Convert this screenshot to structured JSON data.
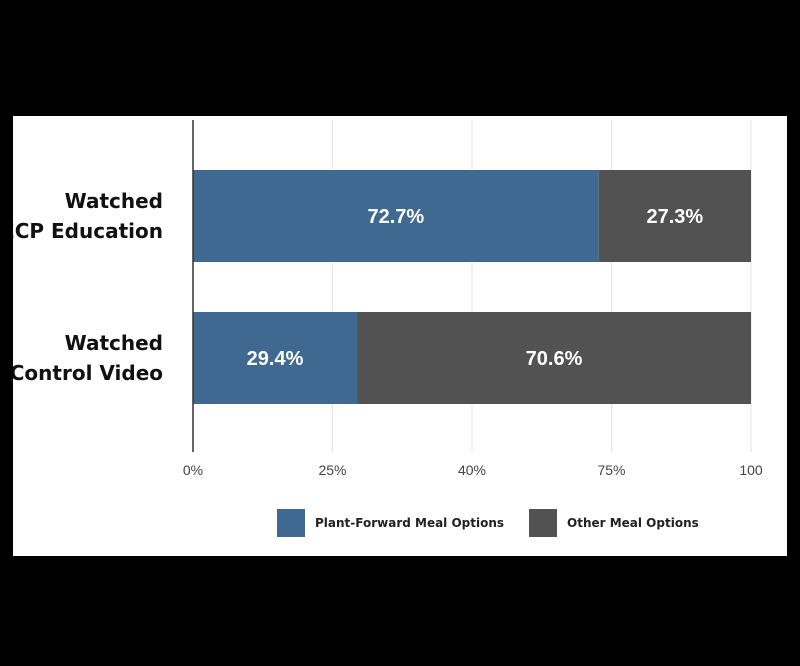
{
  "chart_data": {
    "type": "bar",
    "orientation": "horizontal",
    "stacked": true,
    "categories": [
      [
        "Watched",
        "ECP Education"
      ],
      [
        "Watched",
        "Control Video"
      ]
    ],
    "series": [
      {
        "name": "Plant-Forward Meal Options",
        "color": "#3f6990",
        "values": [
          72.7,
          29.4
        ],
        "value_labels": [
          "72.7%",
          "29.4%"
        ]
      },
      {
        "name": "Other Meal Options",
        "color": "#525252",
        "values": [
          27.3,
          70.6
        ],
        "value_labels": [
          "27.3%",
          "70.6%"
        ]
      }
    ],
    "x_ticks": [
      "0%",
      "25%",
      "40%",
      "75%",
      "100"
    ],
    "xlim": [
      0,
      100
    ],
    "grid": "vertical",
    "legend_position": "bottom-center",
    "title": "",
    "xlabel": "",
    "ylabel": ""
  }
}
